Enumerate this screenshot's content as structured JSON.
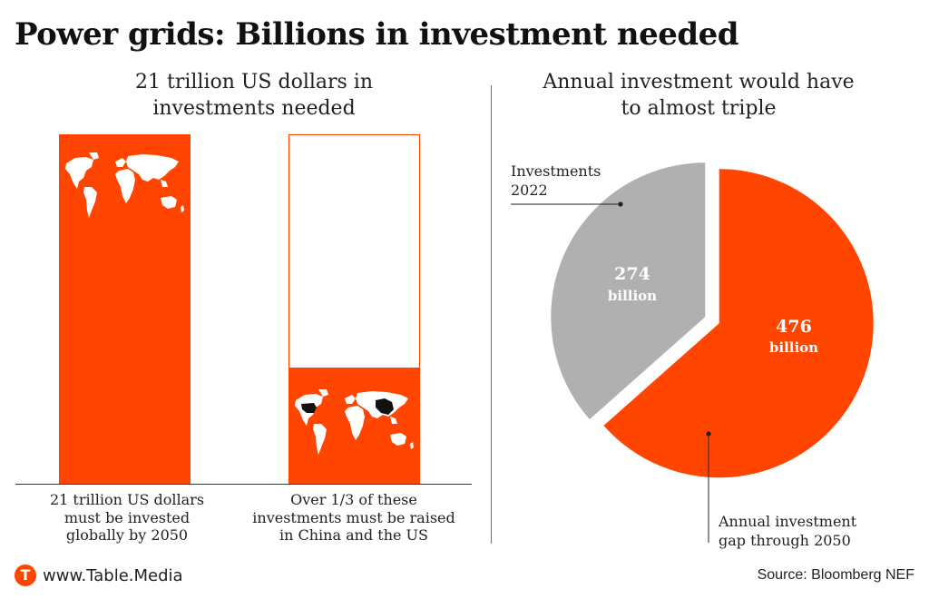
{
  "title": "Power grids: Billions in investment needed",
  "left_panel": {
    "title_line1": "21 trillion US dollars in",
    "title_line2": "investments needed",
    "caption1": [
      "21 trillion US dollars",
      "must be invested",
      "globally by 2050"
    ],
    "caption2": [
      "Over 1/3 of these",
      "investments must be raised",
      "in China and the US"
    ]
  },
  "right_panel": {
    "title_line1": "Annual investment would have",
    "title_line2": "to almost triple"
  },
  "chart_data": [
    {
      "type": "bar",
      "title": "21 trillion US dollars in investments needed",
      "unit": "trillion US dollars",
      "bars": [
        {
          "label": "21 trillion US dollars must be invested globally by 2050",
          "total": 21,
          "highlighted": 21
        },
        {
          "label": "Over 1/3 of these investments must be raised in China and the US",
          "total": 21,
          "highlighted": 7
        }
      ],
      "colors": {
        "highlight": "#ff4500",
        "outline": "#ff4500"
      }
    },
    {
      "type": "pie",
      "title": "Annual investment would have to almost triple",
      "slices": [
        {
          "label": "Investments 2022",
          "value": 274,
          "value_text": "274",
          "unit": "billion",
          "color": "#b0b0b0"
        },
        {
          "label": "Annual investment gap through 2050",
          "value": 476,
          "value_text": "476",
          "unit": "billion",
          "color": "#ff4500"
        }
      ]
    }
  ],
  "pie_labels": {
    "invest_line1": "Investments",
    "invest_line2": "2022",
    "gap_line1": "Annual investment",
    "gap_line2": "gap through 2050"
  },
  "footer": {
    "logo_letter": "T",
    "site": "www.Table.Media",
    "source": "Source: Bloomberg NEF"
  }
}
